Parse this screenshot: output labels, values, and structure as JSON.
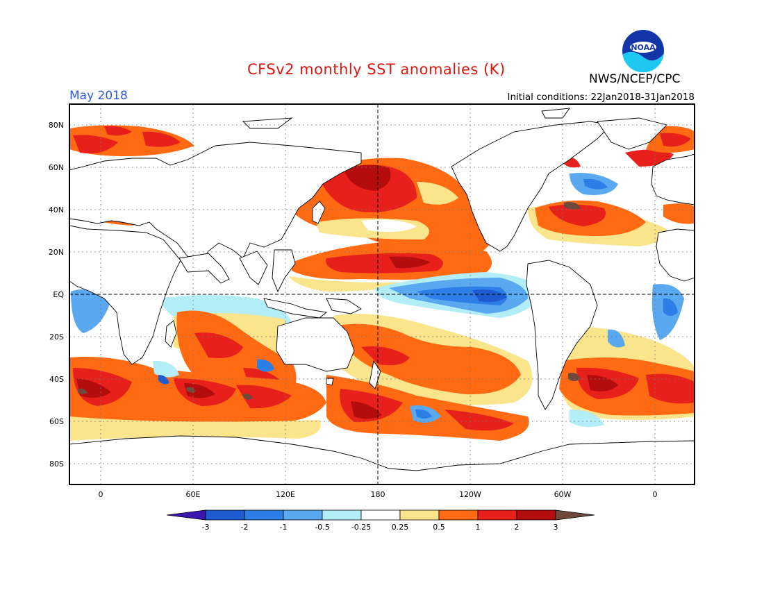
{
  "header": {
    "title": "CFSv2 monthly SST anomalies (K)",
    "month": "May 2018",
    "initial_conditions": "Initial conditions: 22Jan2018-31Jan2018",
    "agency": "NWS/NCEP/CPC",
    "logo_text": "NOAA"
  },
  "axes": {
    "lat_labels": [
      "80N",
      "60N",
      "40N",
      "20N",
      "EQ",
      "20S",
      "40S",
      "60S",
      "80S"
    ],
    "lon_labels": [
      "0",
      "60E",
      "120E",
      "180",
      "120W",
      "60W",
      "0"
    ]
  },
  "colorbar": {
    "labels": [
      "-3",
      "-2",
      "-1",
      "-0.5",
      "-0.25",
      "0.25",
      "0.5",
      "1",
      "2",
      "3"
    ],
    "colors": [
      "#3b16b3",
      "#1f5bd0",
      "#2d7ee6",
      "#5aa8f0",
      "#b3eef6",
      "#ffffff",
      "#fbe58c",
      "#ff6a12",
      "#e8201c",
      "#b30d0d",
      "#6e4a3c"
    ]
  }
}
